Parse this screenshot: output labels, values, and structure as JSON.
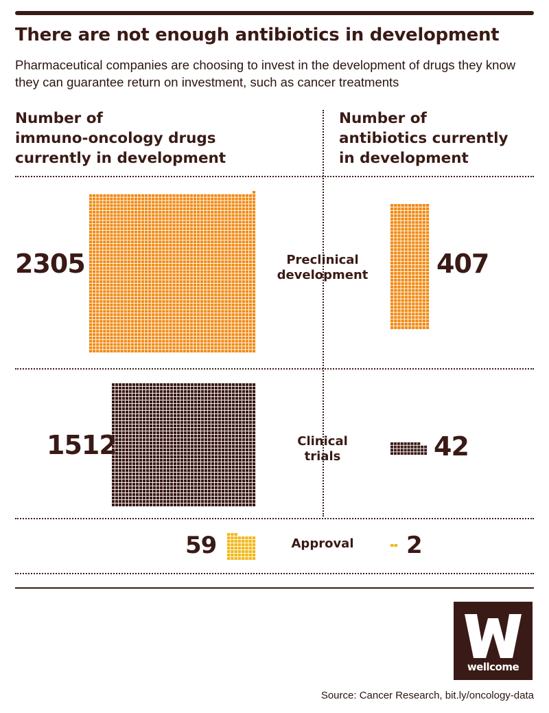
{
  "header": {
    "title": "There are not enough antibiotics in development",
    "subtitle": "Pharmaceutical companies are choosing to invest in the development of drugs they know they can guarantee return on investment, such as cancer treatments"
  },
  "columns": {
    "left_heading": "Number of\nimmuno-oncology drugs\ncurrently in development",
    "right_heading": "Number of\nantibiotics currently\nin development"
  },
  "chart_data": {
    "type": "bar",
    "categories": [
      "Preclinical development",
      "Clinical trials",
      "Approval"
    ],
    "series": [
      {
        "name": "immuno-oncology drugs",
        "values": [
          2305,
          1512,
          59
        ]
      },
      {
        "name": "antibiotics",
        "values": [
          407,
          42,
          2
        ]
      }
    ],
    "stage_labels": [
      "Preclinical\ndevelopment",
      "Clinical\ntrials",
      "Approval"
    ],
    "value_labels": {
      "oncology": [
        "2305",
        "1512",
        "59"
      ],
      "antibiotics": [
        "407",
        "42",
        "2"
      ]
    },
    "colors": {
      "Preclinical development": "#f08a14",
      "Clinical trials": "#3a1a16",
      "Approval": "#f2b81b"
    }
  },
  "brand": {
    "logo_letter": "W",
    "logo_text": "wellcome",
    "logo_color": "#3a1a16"
  },
  "footer": {
    "source": "Source: Cancer Research, bit.ly/oncology-data"
  }
}
